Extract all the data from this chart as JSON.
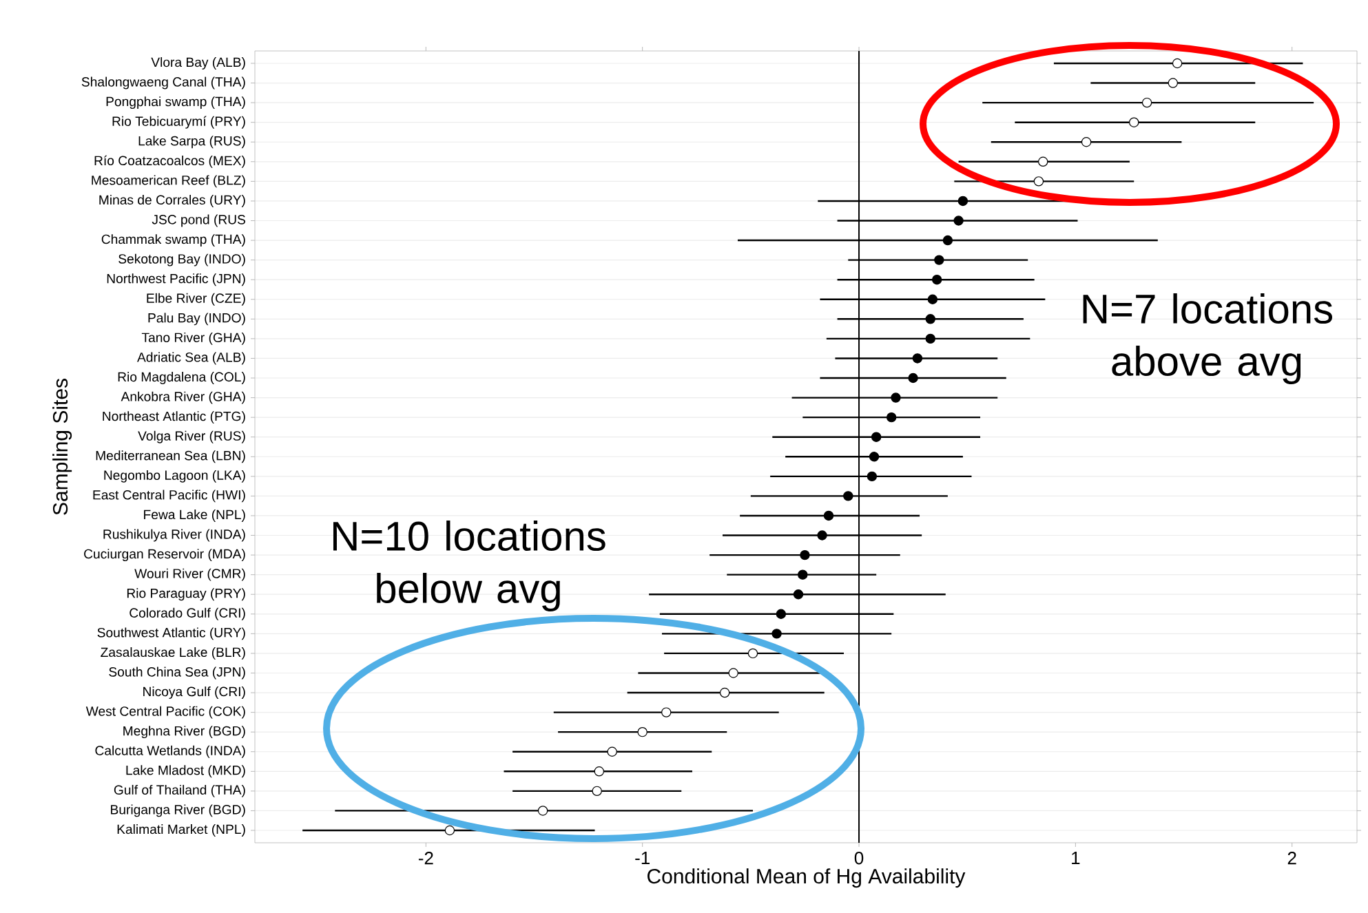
{
  "chart_data": {
    "type": "scatter",
    "orientation": "horizontal",
    "xlabel": "Conditional Mean of Hg Availability",
    "ylabel": "Sampling Sites",
    "categories": [
      "Vlora Bay (ALB)",
      "Shalongwaeng Canal (THA)",
      "Pongphai swamp (THA)",
      "Rio Tebicuarymí (PRY)",
      "Lake Sarpa (RUS)",
      "Río Coatzacoalcos (MEX)",
      "Mesoamerican Reef (BLZ)",
      "Minas de Corrales (URY)",
      "JSC pond (RUS",
      "Chammak swamp (THA)",
      "Sekotong Bay (INDO)",
      "Northwest Pacific (JPN)",
      "Elbe River (CZE)",
      "Palu Bay (INDO)",
      "Tano River (GHA)",
      "Adriatic Sea (ALB)",
      "Rio Magdalena (COL)",
      "Ankobra River (GHA)",
      "Northeast Atlantic (PTG)",
      "Volga River (RUS)",
      "Mediterranean Sea (LBN)",
      "Negombo Lagoon (LKA)",
      "East Central Pacific (HWI)",
      "Fewa Lake (NPL)",
      "Rushikulya River (INDA)",
      "Cuciurgan Reservoir (MDA)",
      "Wouri River (CMR)",
      "Rio Paraguay (PRY)",
      "Colorado Gulf (CRI)",
      "Southwest Atlantic (URY)",
      "Zasalauskae Lake (BLR)",
      "South China Sea (JPN)",
      "Nicoya Gulf (CRI)",
      "West Central Pacific (COK)",
      "Meghna River (BGD)",
      "Calcutta Wetlands (INDA)",
      "Lake Mladost (MKD)",
      "Gulf of Thailand (THA)",
      "Buriganga River (BGD)",
      "Kalimati Market (NPL)"
    ],
    "series": [
      {
        "color": "#ffffff",
        "values": [
          1.47,
          1.45,
          1.33,
          1.27,
          1.05,
          0.85,
          0.83,
          null,
          null,
          null,
          null,
          null,
          null,
          null,
          null,
          null,
          null,
          null,
          null,
          null,
          null,
          null,
          null,
          null,
          null,
          null,
          null,
          null,
          null,
          null,
          -0.49,
          -0.58,
          -0.62,
          -0.89,
          -1.0,
          -1.14,
          -1.2,
          -1.21,
          -1.46,
          -1.89
        ],
        "errors": [
          [
            0.9,
            2.05
          ],
          [
            1.07,
            1.83
          ],
          [
            0.57,
            2.1
          ],
          [
            0.72,
            1.83
          ],
          [
            0.61,
            1.49
          ],
          [
            0.46,
            1.25
          ],
          [
            0.44,
            1.27
          ],
          null,
          null,
          null,
          null,
          null,
          null,
          null,
          null,
          null,
          null,
          null,
          null,
          null,
          null,
          null,
          null,
          null,
          null,
          null,
          null,
          null,
          null,
          null,
          [
            -0.9,
            -0.07
          ],
          [
            -1.02,
            -0.14
          ],
          [
            -1.07,
            -0.16
          ],
          [
            -1.41,
            -0.37
          ],
          [
            -1.39,
            -0.61
          ],
          [
            -1.6,
            -0.68
          ],
          [
            -1.64,
            -0.77
          ],
          [
            -1.6,
            -0.82
          ],
          [
            -2.42,
            -0.49
          ],
          [
            -2.57,
            -1.22
          ]
        ]
      },
      {
        "color": "#000000",
        "values": [
          null,
          null,
          null,
          null,
          null,
          null,
          null,
          0.48,
          0.46,
          0.41,
          0.37,
          0.36,
          0.34,
          0.33,
          0.33,
          0.27,
          0.25,
          0.17,
          0.15,
          0.08,
          0.07,
          0.06,
          -0.05,
          -0.14,
          -0.17,
          -0.25,
          -0.26,
          -0.28,
          -0.36,
          -0.38,
          null,
          null,
          null,
          null,
          null,
          null,
          null,
          null,
          null,
          null
        ],
        "errors": [
          null,
          null,
          null,
          null,
          null,
          null,
          null,
          [
            -0.19,
            1.14
          ],
          [
            -0.1,
            1.01
          ],
          [
            -0.56,
            1.38
          ],
          [
            -0.05,
            0.78
          ],
          [
            -0.1,
            0.81
          ],
          [
            -0.18,
            0.86
          ],
          [
            -0.1,
            0.76
          ],
          [
            -0.15,
            0.79
          ],
          [
            -0.11,
            0.64
          ],
          [
            -0.18,
            0.68
          ],
          [
            -0.31,
            0.64
          ],
          [
            -0.26,
            0.56
          ],
          [
            -0.4,
            0.56
          ],
          [
            -0.34,
            0.48
          ],
          [
            -0.41,
            0.52
          ],
          [
            -0.5,
            0.41
          ],
          [
            -0.55,
            0.28
          ],
          [
            -0.63,
            0.29
          ],
          [
            -0.69,
            0.19
          ],
          [
            -0.61,
            0.08
          ],
          [
            -0.97,
            0.4
          ],
          [
            -0.92,
            0.16
          ],
          [
            -0.91,
            0.15
          ],
          null,
          null,
          null,
          null,
          null,
          null,
          null,
          null,
          null,
          null
        ]
      }
    ],
    "xlim": [
      -2.79,
      2.3
    ],
    "xticks": [
      -2,
      -1,
      0,
      1,
      2
    ],
    "grid": "y",
    "marker": "circle",
    "ref_lines": [
      {
        "axis": "x",
        "value": 0
      }
    ],
    "annotations": [
      "N=7 locations above avg",
      "N=10 locations below avg"
    ]
  }
}
